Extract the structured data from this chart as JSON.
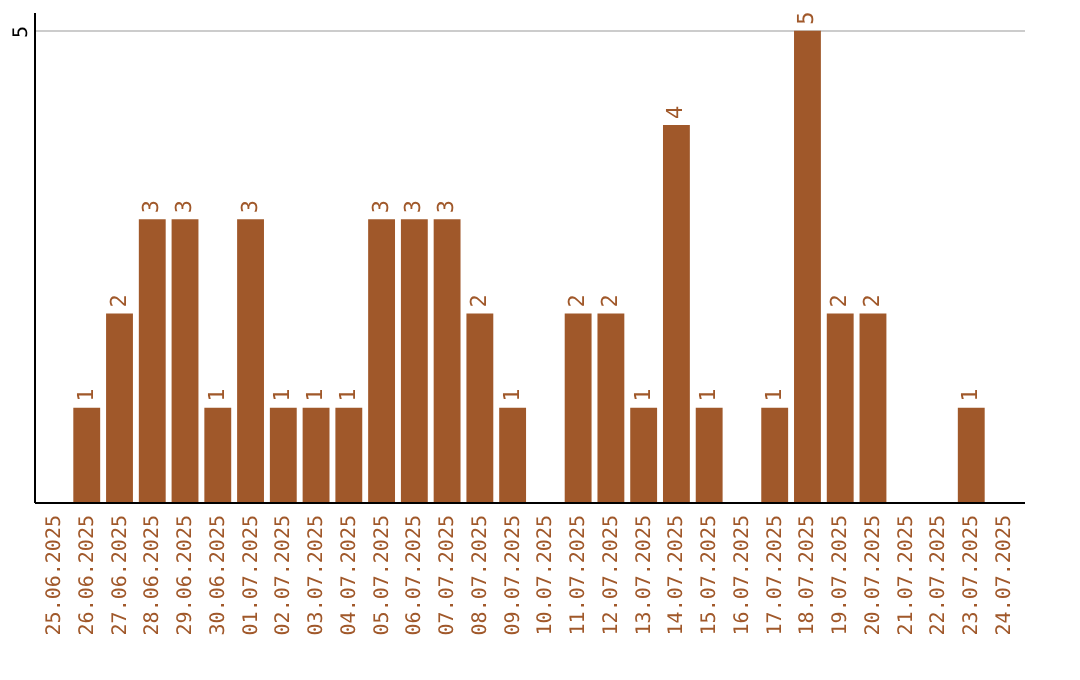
{
  "chart_data": {
    "type": "bar",
    "categories": [
      "25.06.2025",
      "26.06.2025",
      "27.06.2025",
      "28.06.2025",
      "29.06.2025",
      "30.06.2025",
      "01.07.2025",
      "02.07.2025",
      "03.07.2025",
      "04.07.2025",
      "05.07.2025",
      "06.07.2025",
      "07.07.2025",
      "08.07.2025",
      "09.07.2025",
      "10.07.2025",
      "11.07.2025",
      "12.07.2025",
      "13.07.2025",
      "14.07.2025",
      "15.07.2025",
      "16.07.2025",
      "17.07.2025",
      "18.07.2025",
      "19.07.2025",
      "20.07.2025",
      "21.07.2025",
      "22.07.2025",
      "23.07.2025",
      "24.07.2025"
    ],
    "values": [
      null,
      1,
      2,
      3,
      3,
      1,
      3,
      1,
      1,
      1,
      3,
      3,
      3,
      2,
      1,
      null,
      2,
      2,
      1,
      4,
      1,
      null,
      1,
      5,
      2,
      2,
      null,
      null,
      1,
      null
    ],
    "color": "#a0582a",
    "ylim": [
      0,
      5.2
    ],
    "yticks": [
      5
    ],
    "grid": "y",
    "data_labels": true
  }
}
